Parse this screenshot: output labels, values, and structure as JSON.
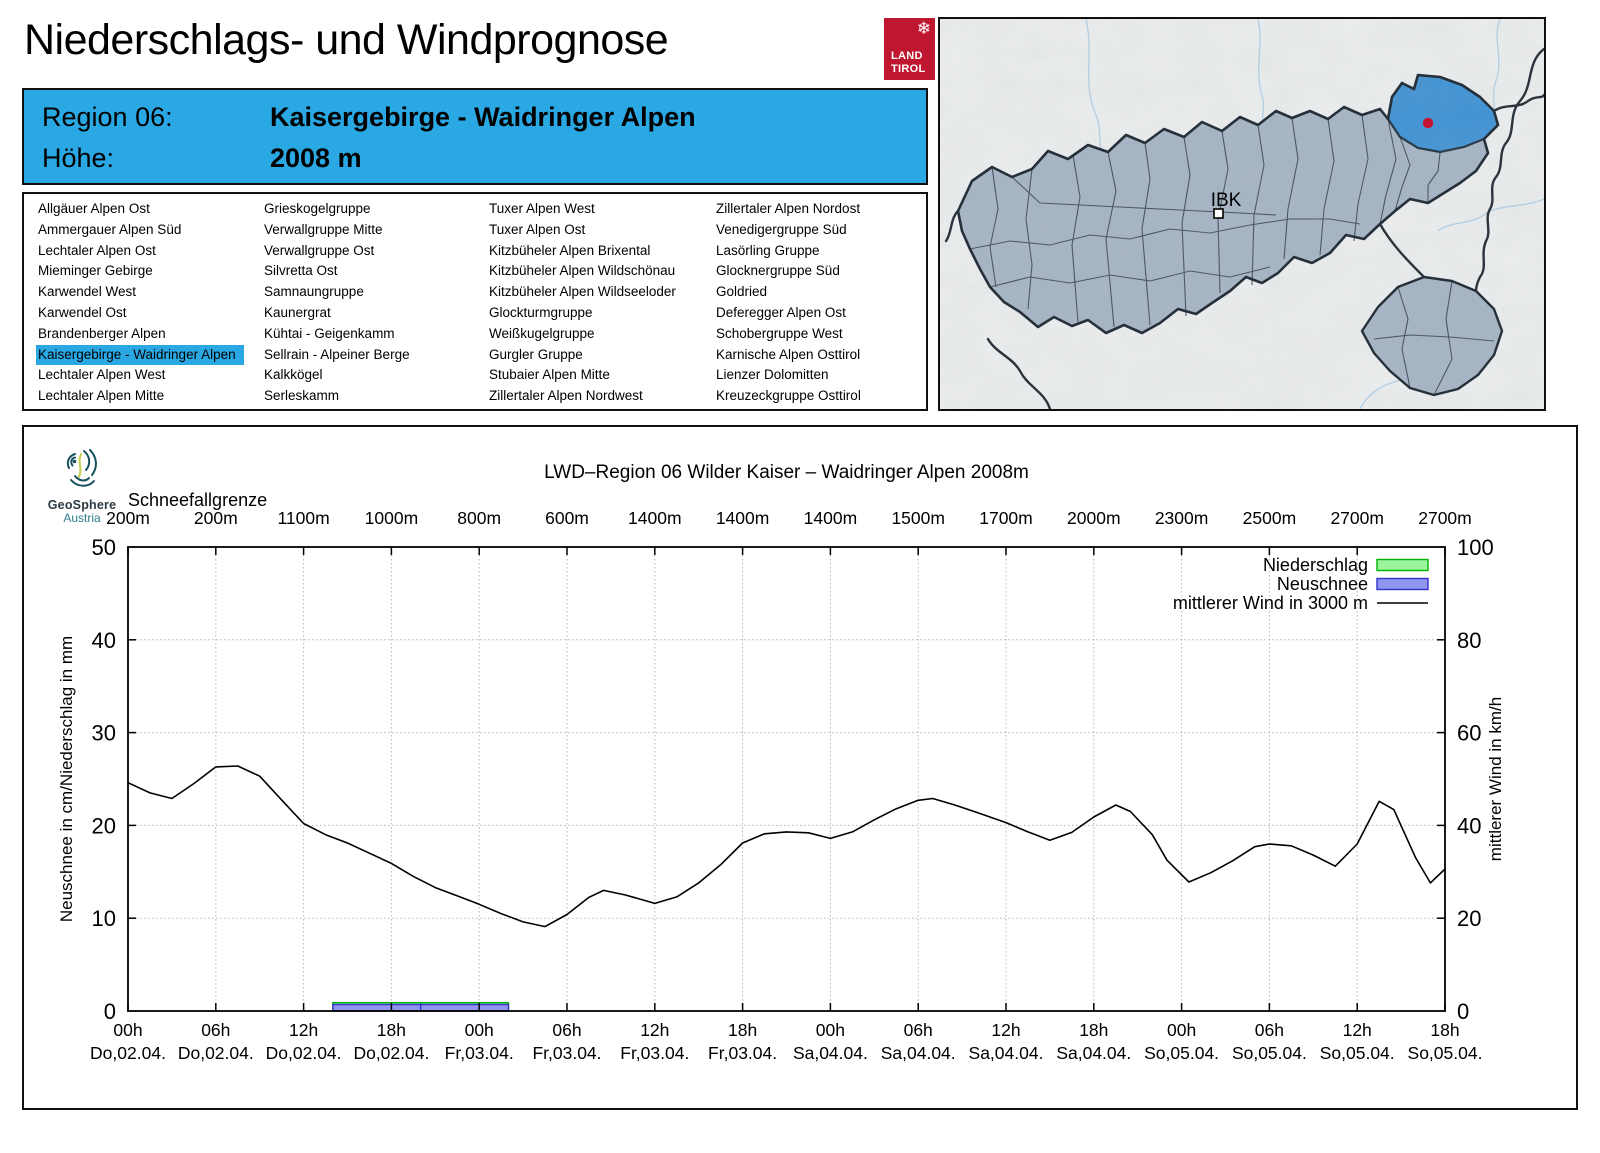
{
  "header": {
    "title": "Niederschlags- und Windprognose",
    "logo": {
      "line1": "LAND",
      "line2": "TIROL",
      "color": "#c01730"
    }
  },
  "region_header": {
    "region_label": "Region 06:",
    "region_name": "Kaisergebirge - Waidringer Alpen",
    "elevation_label": "Höhe:",
    "elevation_value": "2008 m",
    "accent_color": "#29a8e4"
  },
  "region_list": {
    "selected": "Kaisergebirge - Waidringer Alpen",
    "columns": [
      [
        "Allgäuer Alpen Ost",
        "Ammergauer Alpen Süd",
        "Lechtaler Alpen Ost",
        "Mieminger Gebirge",
        "Karwendel West",
        "Karwendel Ost",
        "Brandenberger Alpen",
        "Kaisergebirge - Waidringer Alpen",
        "Lechtaler Alpen West",
        "Lechtaler Alpen Mitte"
      ],
      [
        "Grieskogelgruppe",
        "Verwallgruppe Mitte",
        "Verwallgruppe Ost",
        "Silvretta Ost",
        "Samnaungruppe",
        "Kaunergrat",
        "Kühtai - Geigenkamm",
        "Sellrain - Alpeiner Berge",
        "Kalkkögel",
        "Serleskamm"
      ],
      [
        "Tuxer Alpen West",
        "Tuxer Alpen Ost",
        "Kitzbüheler Alpen Brixental",
        "Kitzbüheler Alpen Wildschönau",
        "Kitzbüheler Alpen Wildseeloder",
        "Glockturmgruppe",
        "Weißkugelgruppe",
        "Gurgler Gruppe",
        "Stubaier Alpen Mitte",
        "Zillertaler Alpen Nordwest"
      ],
      [
        "Zillertaler Alpen Nordost",
        "Venedigergruppe Süd",
        "Lasörling Gruppe",
        "Glocknergruppe Süd",
        "Goldried",
        "Deferegger Alpen Ost",
        "Schobergruppe West",
        "Karnische Alpen Osttirol",
        "Lienzer Dolomitten",
        "Kreuzeckgruppe Osttirol"
      ]
    ]
  },
  "map": {
    "marker_label": "IBK",
    "selected_region_color": "#3f92d4",
    "marker_dot_color": "#c41230",
    "region_fill": "#a6b4c4"
  },
  "chart": {
    "brand": {
      "name": "GeoSphere",
      "sub": "Austria"
    }
  },
  "chart_data": {
    "type": "composite",
    "title": "LWD–Region 06 Wilder Kaiser – Waidringer Alpen 2008m",
    "snowline": {
      "label": "Schneefallgrenze",
      "values": [
        "200m",
        "200m",
        "1100m",
        "1000m",
        "800m",
        "600m",
        "1400m",
        "1400m",
        "1400m",
        "1500m",
        "1700m",
        "2000m",
        "2300m",
        "2500m",
        "2700m",
        "2700m"
      ]
    },
    "x_ticks": [
      {
        "time": "00h",
        "date": "Do,02.04."
      },
      {
        "time": "06h",
        "date": "Do,02.04."
      },
      {
        "time": "12h",
        "date": "Do,02.04."
      },
      {
        "time": "18h",
        "date": "Do,02.04."
      },
      {
        "time": "00h",
        "date": "Fr,03.04."
      },
      {
        "time": "06h",
        "date": "Fr,03.04."
      },
      {
        "time": "12h",
        "date": "Fr,03.04."
      },
      {
        "time": "18h",
        "date": "Fr,03.04."
      },
      {
        "time": "00h",
        "date": "Sa,04.04."
      },
      {
        "time": "06h",
        "date": "Sa,04.04."
      },
      {
        "time": "12h",
        "date": "Sa,04.04."
      },
      {
        "time": "18h",
        "date": "Sa,04.04."
      },
      {
        "time": "00h",
        "date": "So,05.04."
      },
      {
        "time": "06h",
        "date": "So,05.04."
      },
      {
        "time": "12h",
        "date": "So,05.04."
      },
      {
        "time": "18h",
        "date": "So,05.04."
      }
    ],
    "x_hours_range": [
      0,
      90
    ],
    "x_tick_step_hours": 6,
    "grid": true,
    "y_left": {
      "label": "Neuschnee in cm/Niederschlag in mm",
      "min": 0,
      "max": 50,
      "ticks": [
        0,
        10,
        20,
        30,
        40,
        50
      ]
    },
    "y_right": {
      "label": "mittlerer Wind in km/h",
      "min": 0,
      "max": 100,
      "ticks": [
        0,
        20,
        40,
        60,
        80,
        100
      ]
    },
    "legend": [
      {
        "label": "Niederschlag",
        "swatch": "box",
        "fill": "#9cf49c",
        "stroke": "#00b400"
      },
      {
        "label": "Neuschnee",
        "swatch": "box",
        "fill": "#8f95ee",
        "stroke": "#3333cc"
      },
      {
        "label": "mittlerer Wind in 3000 m",
        "swatch": "line",
        "stroke": "#000000"
      }
    ],
    "bars": [
      {
        "start_h": 14,
        "end_h": 20,
        "niederschlag_mm": 0.9,
        "neuschnee_cm": 0.7
      },
      {
        "start_h": 20,
        "end_h": 26,
        "niederschlag_mm": 0.9,
        "neuschnee_cm": 0.7
      }
    ],
    "wind_series": {
      "name": "mittlerer Wind in 3000 m",
      "unit": "km/h",
      "axis": "right",
      "points": [
        [
          0,
          49.2
        ],
        [
          1.5,
          47.0
        ],
        [
          3,
          45.8
        ],
        [
          4.5,
          49.0
        ],
        [
          6,
          52.6
        ],
        [
          7.5,
          52.8
        ],
        [
          9,
          50.6
        ],
        [
          10.5,
          45.5
        ],
        [
          12,
          40.4
        ],
        [
          13.5,
          38.0
        ],
        [
          15,
          36.2
        ],
        [
          16.5,
          34.0
        ],
        [
          18,
          31.8
        ],
        [
          19.5,
          29.0
        ],
        [
          21,
          26.6
        ],
        [
          22.5,
          24.8
        ],
        [
          24,
          23.0
        ],
        [
          25.5,
          21.0
        ],
        [
          27,
          19.2
        ],
        [
          28.5,
          18.2
        ],
        [
          30,
          20.8
        ],
        [
          31.5,
          24.5
        ],
        [
          32.5,
          26.0
        ],
        [
          34,
          25.0
        ],
        [
          36,
          23.2
        ],
        [
          37.5,
          24.6
        ],
        [
          39,
          27.6
        ],
        [
          40.5,
          31.5
        ],
        [
          42,
          36.2
        ],
        [
          43.5,
          38.2
        ],
        [
          45,
          38.6
        ],
        [
          46.5,
          38.4
        ],
        [
          48,
          37.2
        ],
        [
          49.5,
          38.6
        ],
        [
          51,
          41.2
        ],
        [
          52.5,
          43.6
        ],
        [
          54,
          45.4
        ],
        [
          55,
          45.8
        ],
        [
          56.5,
          44.4
        ],
        [
          58,
          42.8
        ],
        [
          60,
          40.6
        ],
        [
          61.5,
          38.6
        ],
        [
          63,
          36.8
        ],
        [
          64.5,
          38.5
        ],
        [
          66,
          41.8
        ],
        [
          67.5,
          44.4
        ],
        [
          68.5,
          43.0
        ],
        [
          70,
          38.0
        ],
        [
          71,
          32.5
        ],
        [
          72.5,
          27.8
        ],
        [
          74,
          29.8
        ],
        [
          75.5,
          32.4
        ],
        [
          77,
          35.4
        ],
        [
          78,
          36.0
        ],
        [
          79.5,
          35.6
        ],
        [
          81,
          33.6
        ],
        [
          82.5,
          31.2
        ],
        [
          84,
          36.0
        ],
        [
          85.5,
          45.2
        ],
        [
          86.5,
          43.4
        ],
        [
          88,
          33.0
        ],
        [
          89,
          27.6
        ],
        [
          90,
          30.6
        ]
      ]
    }
  }
}
